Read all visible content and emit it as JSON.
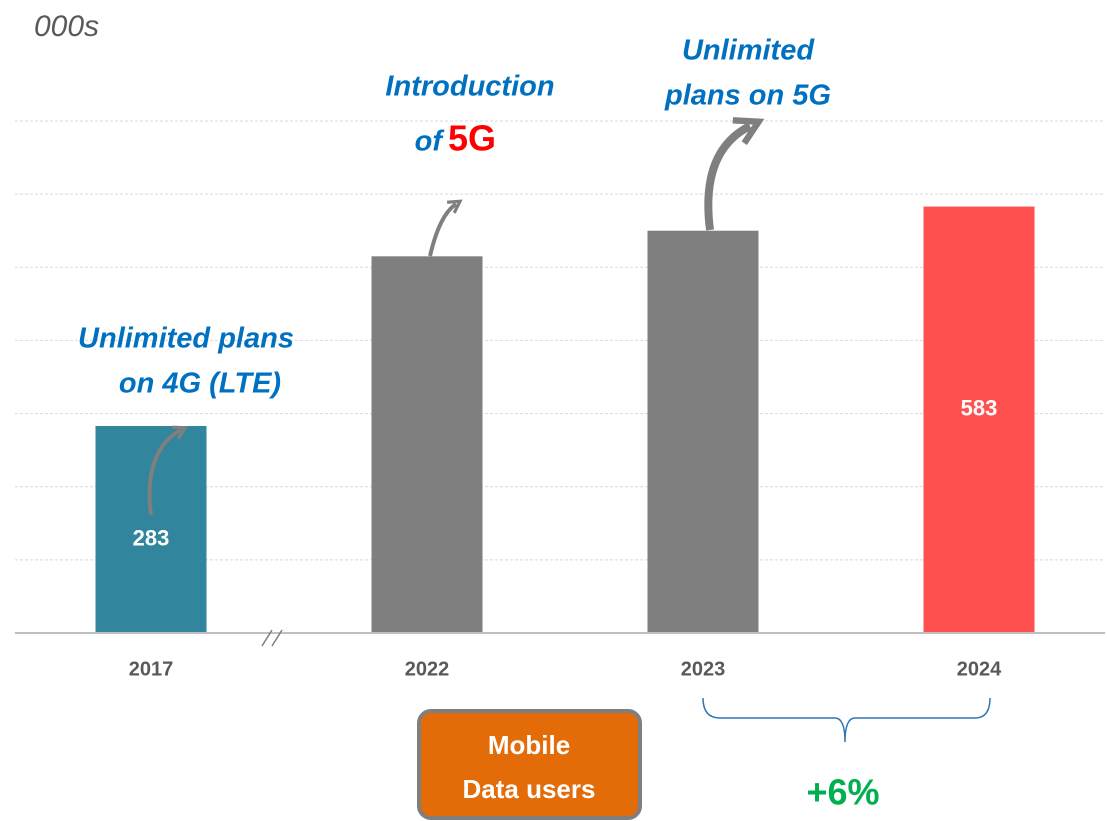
{
  "chart_data": {
    "type": "bar",
    "categories": [
      "2017",
      "2022",
      "2023",
      "2024"
    ],
    "values": [
      283,
      515,
      550,
      583
    ],
    "value_labels": [
      "283",
      null,
      null,
      "583"
    ],
    "colors": [
      "#31859c",
      "#7f7f7f",
      "#7f7f7f",
      "#ff5050"
    ],
    "ylim": [
      0,
      700
    ],
    "yticks": [
      0,
      100,
      200,
      300,
      400,
      500,
      600,
      700
    ],
    "grid": true,
    "annotations": {
      "unit": "000s",
      "lte": [
        "Unlimited plans",
        "on 4G (LTE)"
      ],
      "intro": [
        "Introduction",
        "of",
        "5G"
      ],
      "unl5g": [
        "Unlimited",
        "plans on 5G"
      ],
      "box": [
        "Mobile",
        "Data users"
      ],
      "growth": "+6%"
    }
  }
}
